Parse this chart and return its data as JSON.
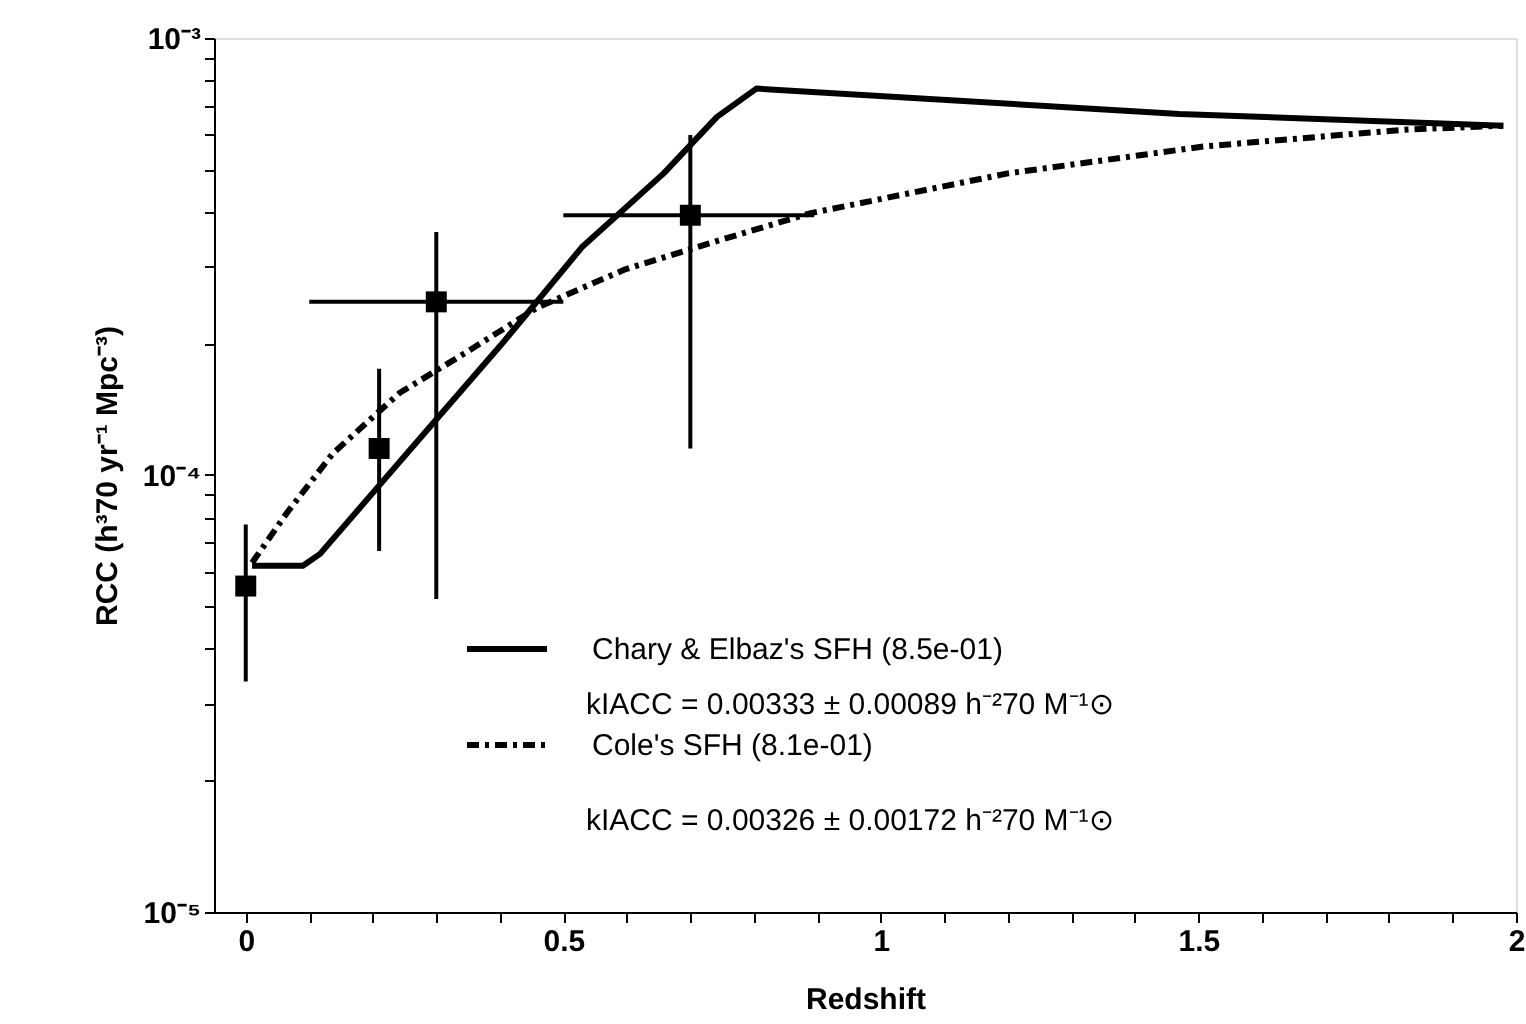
{
  "chart_data": {
    "type": "line",
    "xlabel": "Redshift",
    "ylabel": "RCC (h³70 yr⁻¹ Mpc⁻³)",
    "log": "y",
    "xlim": [
      -0.05,
      2.0
    ],
    "xticks": [
      {
        "value": 0,
        "label": "0"
      },
      {
        "value": 0.1,
        "label": null
      },
      {
        "value": 0.2,
        "label": null
      },
      {
        "value": 0.3,
        "label": null
      },
      {
        "value": 0.4,
        "label": null
      },
      0.5,
      {
        "value": 0.6,
        "label": null
      },
      {
        "value": 0.7,
        "label": null
      },
      {
        "value": 0.8,
        "label": null
      },
      {
        "value": 0.9,
        "label": null
      },
      1,
      {
        "value": 1.1,
        "label": null
      },
      {
        "value": 1.2,
        "label": null
      },
      {
        "value": 1.3,
        "label": null
      },
      {
        "value": 1.4,
        "label": null
      },
      1.5,
      {
        "value": 1.6,
        "label": null
      },
      {
        "value": 1.7,
        "label": null
      },
      {
        "value": 1.8,
        "label": null
      },
      {
        "value": 1.9,
        "label": null
      },
      2
    ],
    "ylim": [
      1e-05,
      0.001
    ],
    "yticks": [
      {
        "value": 1e-05,
        "label": "10⁻⁵"
      },
      {
        "value": 2e-05,
        "label": null
      },
      {
        "value": 3e-05,
        "label": null
      },
      {
        "value": 4e-05,
        "label": null
      },
      {
        "value": 5e-05,
        "label": null
      },
      {
        "value": 6e-05,
        "label": null
      },
      {
        "value": 7e-05,
        "label": null
      },
      {
        "value": 8e-05,
        "label": null
      },
      {
        "value": 9e-05,
        "label": null
      },
      {
        "value": 0.0001,
        "label": "10⁻⁴"
      },
      {
        "value": 0.0002,
        "label": null
      },
      {
        "value": 0.0003,
        "label": null
      },
      {
        "value": 0.0004,
        "label": null
      },
      {
        "value": 0.0005,
        "label": null
      },
      {
        "value": 0.0006,
        "label": null
      },
      {
        "value": 0.0007,
        "label": null
      },
      {
        "value": 0.0008,
        "label": null
      },
      {
        "value": 0.0009,
        "label": null
      },
      {
        "value": 0.001,
        "label": "10⁻³"
      }
    ],
    "grid": false,
    "legend": "bottom left",
    "series": [
      {
        "name": "Chary & Elbaz's SFH (8.5e-01)",
        "line_style": "solid",
        "color": "#000000",
        "x": [
          0.01,
          0.09,
          0.117,
          0.2,
          0.3,
          0.4,
          0.53,
          0.658,
          0.742,
          0.804,
          1.47,
          1.98
        ],
        "values": [
          6.2e-05,
          6.2e-05,
          6.6e-05,
          9.1e-05,
          0.000134,
          0.000197,
          0.000333,
          0.00049,
          0.00066,
          0.000766,
          0.00067,
          0.00063
        ]
      },
      {
        "name": "Cole's SFH (8.1e-01)",
        "line_style": "dashed",
        "color": "#000000",
        "x": [
          0.01,
          0.065,
          0.137,
          0.242,
          0.345,
          0.46,
          0.596,
          0.73,
          0.888,
          1.2,
          1.51,
          1.825,
          1.98
        ],
        "values": [
          6.3e-05,
          8.2e-05,
          0.000112,
          0.000154,
          0.00019,
          0.000242,
          0.000295,
          0.000339,
          0.000397,
          0.00049,
          0.000565,
          0.000617,
          0.00063
        ]
      },
      {
        "type": "scatter",
        "marker": "square",
        "color": "#000000",
        "x": [
          0,
          0.21,
          0.3,
          0.7
        ],
        "values": [
          5.57e-05,
          0.000115,
          0.000249,
          0.000393
        ],
        "errors": [
          [
            3.37e-05,
            7.7e-05
          ],
          [
            6.7e-05,
            0.000175
          ],
          [
            5.2e-05,
            0.00036
          ],
          [
            0.000115,
            0.0006
          ]
        ],
        "xerrors": [
          null,
          null,
          [
            0.1,
            0.5
          ],
          [
            0.5,
            0.895
          ]
        ]
      }
    ],
    "annotations": [
      "kIACC = 0.00333 ± 0.00089 h⁻²70 M⁻¹⊙",
      "kIACC = 0.00326 ± 0.00172 h⁻²70 M⁻¹⊙"
    ]
  }
}
